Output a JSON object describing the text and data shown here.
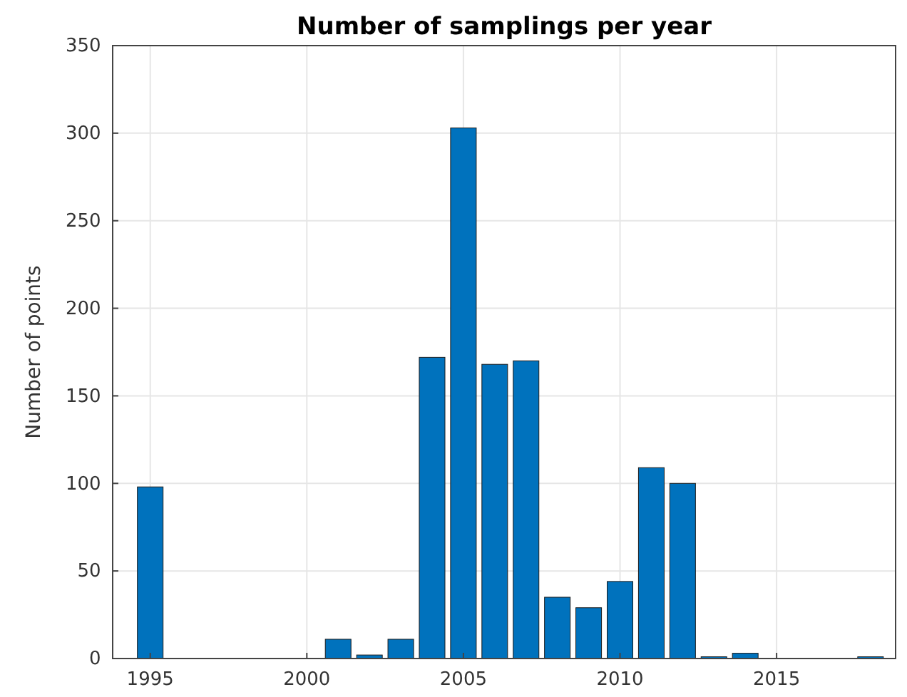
{
  "chart_data": {
    "type": "bar",
    "title": "Number of samplings per year",
    "ylabel": "Number of points",
    "x": [
      1995,
      2001,
      2002,
      2003,
      2004,
      2005,
      2006,
      2007,
      2008,
      2009,
      2010,
      2011,
      2012,
      2013,
      2014,
      2018
    ],
    "values": [
      98,
      11,
      2,
      11,
      172,
      303,
      168,
      170,
      35,
      29,
      44,
      109,
      100,
      1,
      3,
      1
    ],
    "color": "#0072bd",
    "xlim": [
      1993.8,
      2018.8
    ],
    "xticks": [
      1995,
      2000,
      2005,
      2010,
      2015
    ],
    "ylim": [
      0,
      350
    ],
    "yticks": [
      0,
      50,
      100,
      150,
      200,
      250,
      300,
      350
    ],
    "grid": true
  }
}
